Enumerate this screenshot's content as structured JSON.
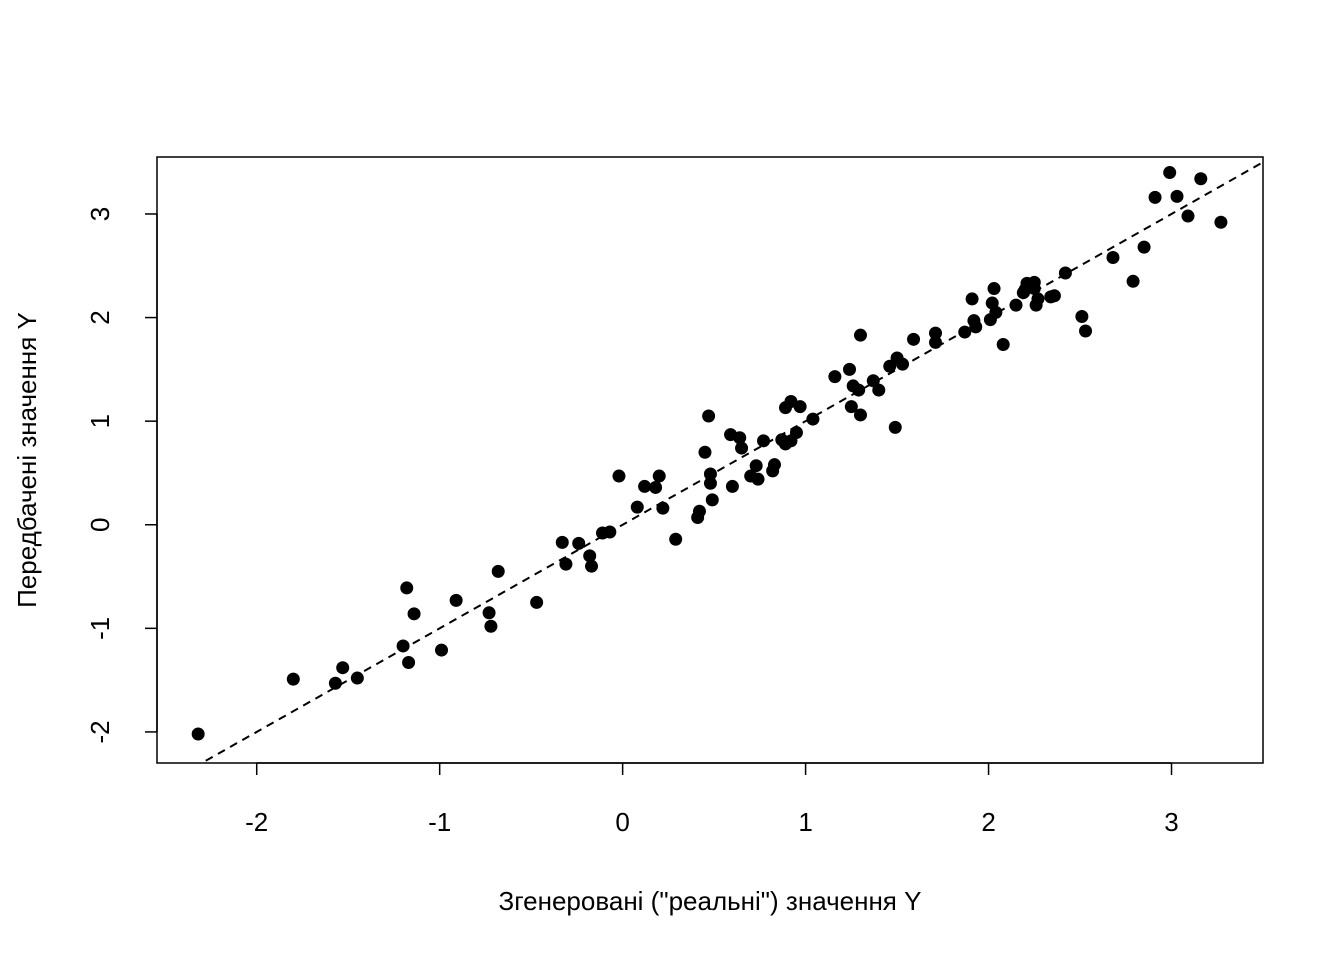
{
  "chart_data": {
    "type": "scatter",
    "title": "",
    "xlabel": "Згенеровані (\"реальні\") значення Y",
    "ylabel": "Передбачені значення Y",
    "xlim": [
      -2.545,
      3.5
    ],
    "ylim": [
      -2.3,
      3.55
    ],
    "x_ticks": [
      -2,
      -1,
      0,
      1,
      2,
      3
    ],
    "y_ticks": [
      -2,
      -1,
      0,
      1,
      2,
      3
    ],
    "x_tick_labels": [
      "-2",
      "-1",
      "0",
      "1",
      "2",
      "3"
    ],
    "y_tick_labels": [
      "-2",
      "-1",
      "0",
      "1",
      "2",
      "3"
    ],
    "grid": false,
    "legend": "none",
    "colors": {
      "points": "#000000",
      "line": "#000000",
      "background": "#ffffff"
    },
    "reference_line": {
      "type": "identity",
      "slope": 1,
      "intercept": 0,
      "style": "dashed"
    },
    "points": [
      [
        -2.32,
        -2.02
      ],
      [
        -1.8,
        -1.49
      ],
      [
        -1.57,
        -1.53
      ],
      [
        -1.53,
        -1.38
      ],
      [
        -1.45,
        -1.48
      ],
      [
        -1.2,
        -1.17
      ],
      [
        -1.18,
        -0.61
      ],
      [
        -1.17,
        -1.33
      ],
      [
        -1.14,
        -0.86
      ],
      [
        -0.99,
        -1.21
      ],
      [
        -0.91,
        -0.73
      ],
      [
        -0.73,
        -0.85
      ],
      [
        -0.72,
        -0.98
      ],
      [
        -0.68,
        -0.45
      ],
      [
        -0.47,
        -0.75
      ],
      [
        -0.33,
        -0.17
      ],
      [
        -0.31,
        -0.38
      ],
      [
        -0.24,
        -0.18
      ],
      [
        -0.18,
        -0.3
      ],
      [
        -0.17,
        -0.4
      ],
      [
        -0.11,
        -0.08
      ],
      [
        -0.07,
        -0.07
      ],
      [
        -0.02,
        0.47
      ],
      [
        0.08,
        0.17
      ],
      [
        0.12,
        0.37
      ],
      [
        0.18,
        0.36
      ],
      [
        0.2,
        0.47
      ],
      [
        0.22,
        0.16
      ],
      [
        0.29,
        -0.14
      ],
      [
        0.41,
        0.07
      ],
      [
        0.42,
        0.13
      ],
      [
        0.45,
        0.7
      ],
      [
        0.47,
        1.05
      ],
      [
        0.48,
        0.49
      ],
      [
        0.48,
        0.4
      ],
      [
        0.49,
        0.24
      ],
      [
        0.59,
        0.87
      ],
      [
        0.6,
        0.37
      ],
      [
        0.64,
        0.84
      ],
      [
        0.65,
        0.74
      ],
      [
        0.7,
        0.47
      ],
      [
        0.73,
        0.57
      ],
      [
        0.74,
        0.44
      ],
      [
        0.77,
        0.81
      ],
      [
        0.82,
        0.52
      ],
      [
        0.83,
        0.58
      ],
      [
        0.87,
        0.82
      ],
      [
        0.89,
        0.78
      ],
      [
        0.89,
        1.13
      ],
      [
        0.92,
        0.81
      ],
      [
        0.92,
        1.19
      ],
      [
        0.95,
        0.89
      ],
      [
        0.97,
        1.14
      ],
      [
        1.04,
        1.02
      ],
      [
        1.16,
        1.43
      ],
      [
        1.24,
        1.5
      ],
      [
        1.25,
        1.14
      ],
      [
        1.26,
        1.34
      ],
      [
        1.29,
        1.3
      ],
      [
        1.3,
        1.06
      ],
      [
        1.3,
        1.83
      ],
      [
        1.37,
        1.39
      ],
      [
        1.4,
        1.3
      ],
      [
        1.46,
        1.53
      ],
      [
        1.49,
        0.94
      ],
      [
        1.5,
        1.61
      ],
      [
        1.53,
        1.55
      ],
      [
        1.59,
        1.79
      ],
      [
        1.71,
        1.85
      ],
      [
        1.71,
        1.76
      ],
      [
        1.87,
        1.86
      ],
      [
        1.91,
        2.18
      ],
      [
        1.92,
        1.97
      ],
      [
        1.93,
        1.91
      ],
      [
        2.01,
        1.98
      ],
      [
        2.02,
        2.14
      ],
      [
        2.03,
        2.28
      ],
      [
        2.04,
        2.05
      ],
      [
        2.08,
        1.74
      ],
      [
        2.15,
        2.12
      ],
      [
        2.19,
        2.24
      ],
      [
        2.2,
        2.27
      ],
      [
        2.21,
        2.33
      ],
      [
        2.25,
        2.34
      ],
      [
        2.25,
        2.28
      ],
      [
        2.26,
        2.12
      ],
      [
        2.27,
        2.18
      ],
      [
        2.34,
        2.2
      ],
      [
        2.36,
        2.21
      ],
      [
        2.42,
        2.43
      ],
      [
        2.51,
        2.01
      ],
      [
        2.53,
        1.87
      ],
      [
        2.68,
        2.58
      ],
      [
        2.79,
        2.35
      ],
      [
        2.85,
        2.68
      ],
      [
        2.91,
        3.16
      ],
      [
        2.99,
        3.4
      ],
      [
        3.03,
        3.17
      ],
      [
        3.09,
        2.98
      ],
      [
        3.16,
        3.34
      ],
      [
        3.27,
        2.92
      ]
    ]
  }
}
